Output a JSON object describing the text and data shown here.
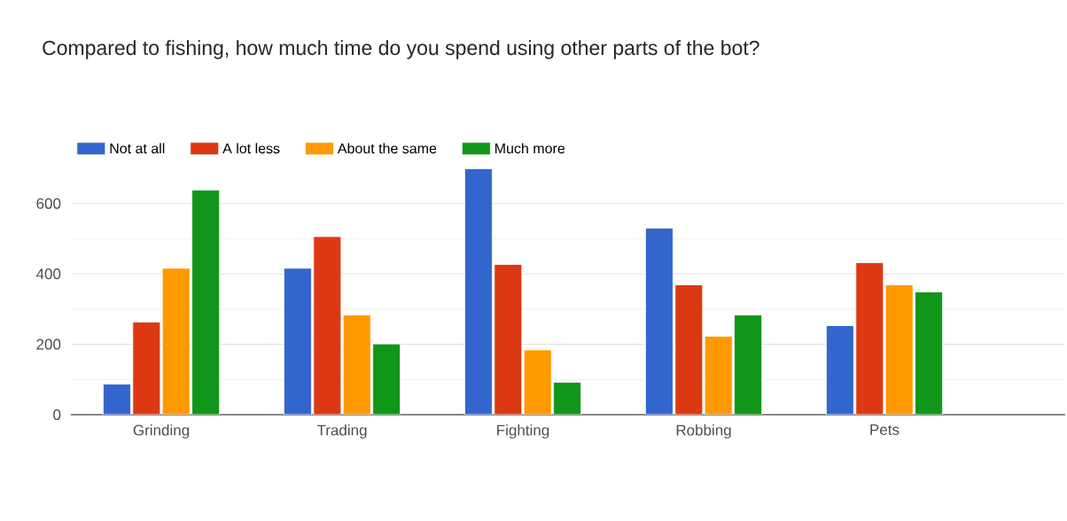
{
  "chart_data": {
    "type": "bar",
    "title": "Compared to fishing, how much time do you spend using other parts of the bot?",
    "categories": [
      "Grinding",
      "Trading",
      "Fighting",
      "Robbing",
      "Pets"
    ],
    "series": [
      {
        "name": "Not at all",
        "color": "#3366cc",
        "values": [
          87,
          416,
          699,
          530,
          253
        ]
      },
      {
        "name": "A lot less",
        "color": "#dc3912",
        "values": [
          263,
          506,
          427,
          369,
          432
        ]
      },
      {
        "name": "About the same",
        "color": "#ff9900",
        "values": [
          416,
          283,
          184,
          223,
          369
        ]
      },
      {
        "name": "Much more",
        "color": "#109618",
        "values": [
          638,
          201,
          92,
          283,
          349
        ]
      }
    ],
    "ylim": [
      0,
      700
    ],
    "yticks": [
      0,
      200,
      400,
      600
    ],
    "grid": "y",
    "legend": "top left"
  }
}
